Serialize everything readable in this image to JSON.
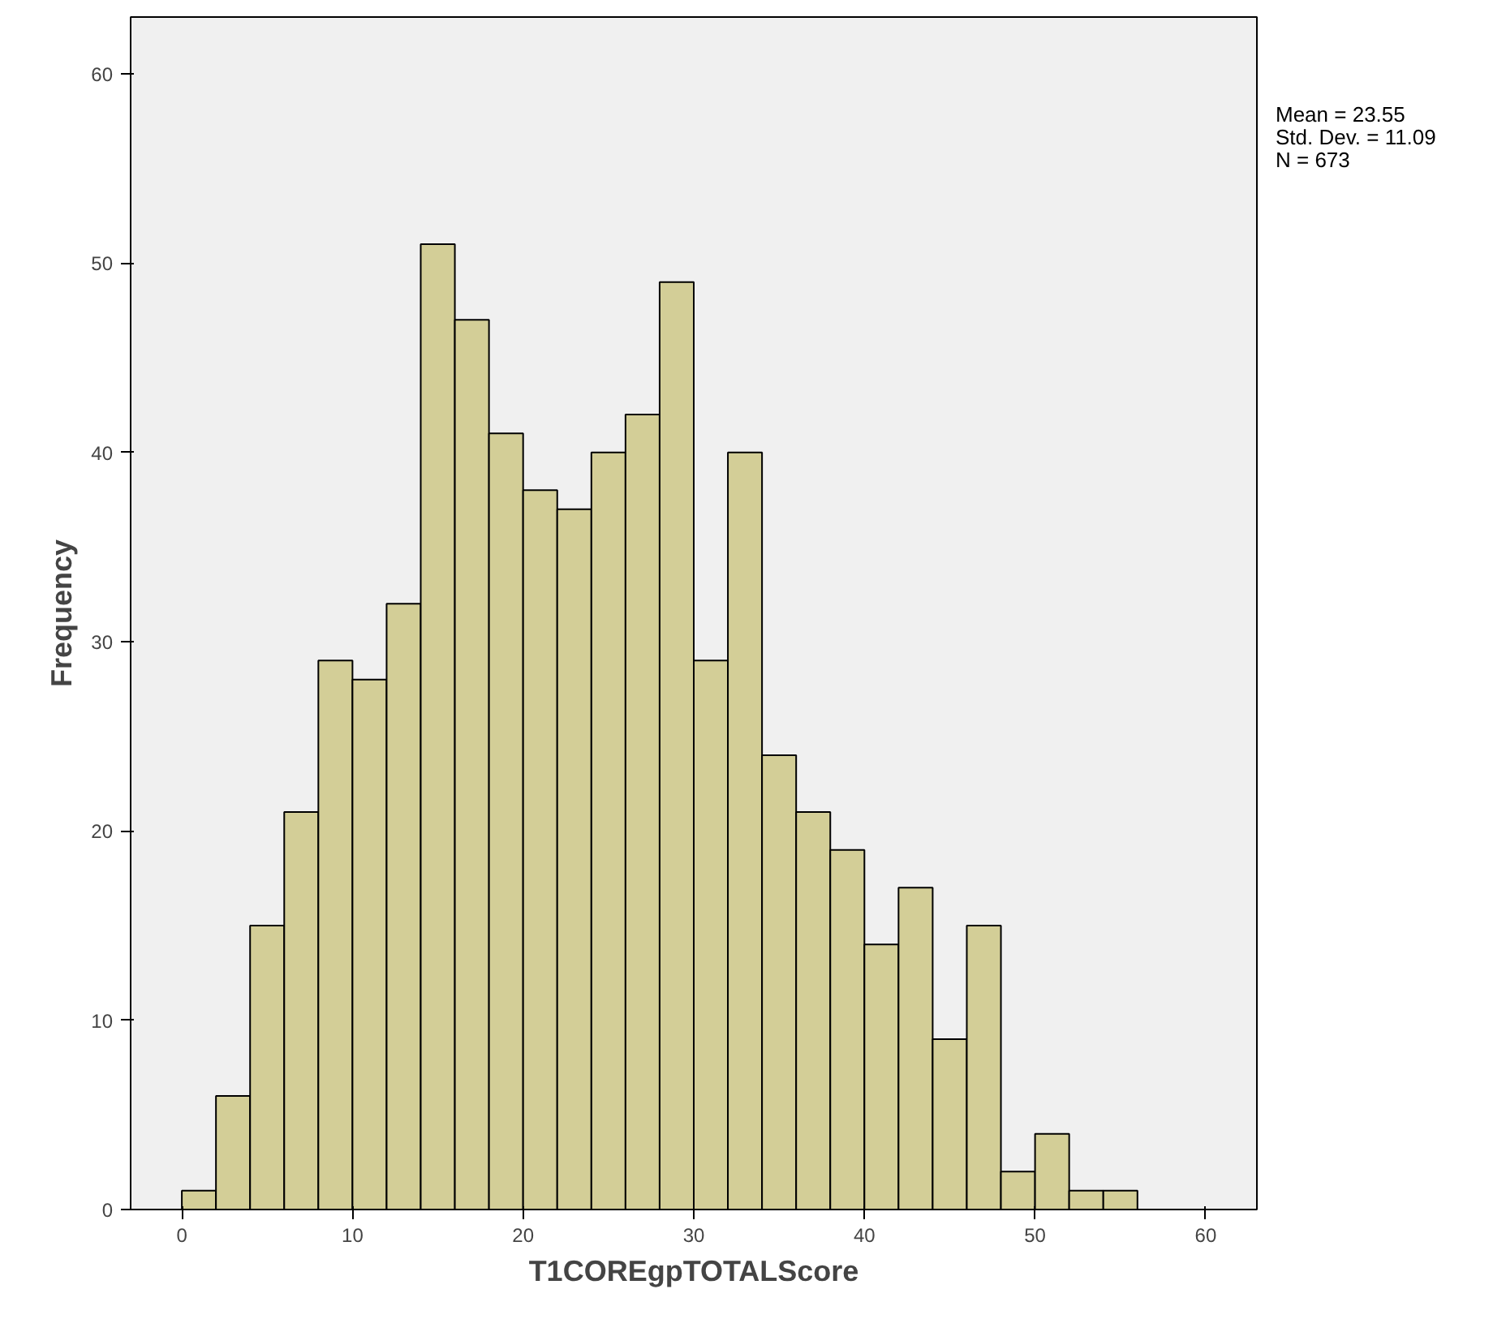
{
  "chart_data": {
    "type": "histogram",
    "xlabel": "T1COREgpTOTALScore",
    "ylabel": "Frequency",
    "bins": [
      0,
      2,
      4,
      6,
      8,
      10,
      12,
      14,
      16,
      18,
      20,
      22,
      24,
      26,
      28,
      30,
      32,
      34,
      36,
      38,
      40,
      42,
      44,
      46,
      48,
      50,
      52,
      54,
      56
    ],
    "values": [
      1,
      6,
      15,
      21,
      29,
      28,
      32,
      51,
      47,
      41,
      38,
      37,
      40,
      42,
      49,
      29,
      40,
      24,
      21,
      19,
      14,
      17,
      9,
      15,
      2,
      4,
      1,
      1
    ],
    "color": "#d3ce97",
    "xlim": [
      -3,
      63
    ],
    "xticks": [
      0,
      10,
      20,
      30,
      40,
      50,
      60
    ],
    "ylim": [
      0,
      63
    ],
    "yticks": [
      0,
      10,
      20,
      30,
      40,
      50,
      60
    ],
    "grid": false,
    "annotations": [
      "Mean = 23.55",
      "Std. Dev. = 11.09",
      "N = 673"
    ]
  }
}
